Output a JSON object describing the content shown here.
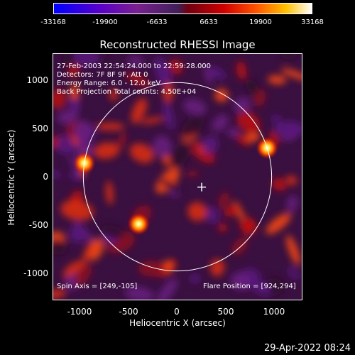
{
  "colorbar": {
    "ticks": [
      "-33168",
      "-19900",
      "-6633",
      "6633",
      "19900",
      "33168"
    ]
  },
  "title": "Reconstructed RHESSI Image",
  "info": {
    "time": "27-Feb-2003 22:54:24.000 to 22:59:28.000",
    "detectors": "Detectors: 7F 8F 9F, Att 0",
    "energy": "Energy Range: 6.0 - 12.0 keV",
    "method": "Back Projection     Total counts: 4.50E+04",
    "spin_axis": "Spin Axis = [249,-105]",
    "flare_position": "Flare Position = [924,294]"
  },
  "axes": {
    "xlabel": "Heliocentric X (arcsec)",
    "ylabel": "Heliocentric Y (arcsec)",
    "xticks": [
      "-1000",
      "-500",
      "0",
      "500",
      "1000"
    ],
    "yticks": [
      "1000",
      "500",
      "0",
      "-500",
      "-1000"
    ],
    "xrange": [
      -1280,
      1280
    ],
    "yrange": [
      -1250,
      1250
    ]
  },
  "sources": [
    {
      "x": 924,
      "y": 294
    },
    {
      "x": -960,
      "y": 140
    },
    {
      "x": -400,
      "y": -480
    },
    {
      "x": 249,
      "y": -105
    }
  ],
  "limb_radius": 970,
  "footer_date": "29-Apr-2022 08:24"
}
